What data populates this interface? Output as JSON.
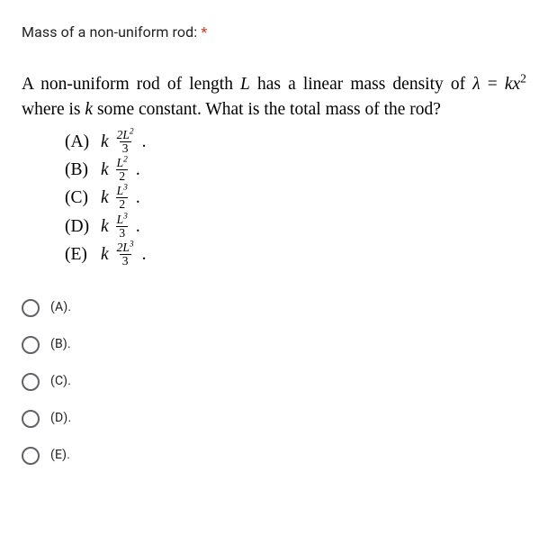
{
  "question": {
    "title": "Mass of a non-uniform rod:",
    "required_mark": "*",
    "body_html": "A non-uniform rod of length <span class=\"ital\">L</span> has a linear mass density of <span class=\"ital\">λ</span> = <span class=\"ital\">kx</span><sup>2</sup> where is <span class=\"ital\">k</span> some constant. What is the total mass of the rod?"
  },
  "expressions": [
    {
      "label": "(A)",
      "k": "k",
      "num": "2L²",
      "den": "3"
    },
    {
      "label": "(B)",
      "k": "k",
      "num": "L²",
      "den": "2"
    },
    {
      "label": "(C)",
      "k": "k",
      "num": "L³",
      "den": "2"
    },
    {
      "label": "(D)",
      "k": "k",
      "num": "L³",
      "den": "3"
    },
    {
      "label": "(E)",
      "k": "k",
      "num": "2L³",
      "den": "3"
    }
  ],
  "options": [
    {
      "label": "(A)."
    },
    {
      "label": "(B)."
    },
    {
      "label": "(C)."
    },
    {
      "label": "(D)."
    },
    {
      "label": "(E)."
    }
  ],
  "colors": {
    "text": "#202124",
    "required": "#d93025",
    "radio_border": "#5f6368",
    "background": "#ffffff",
    "black": "#000000"
  }
}
